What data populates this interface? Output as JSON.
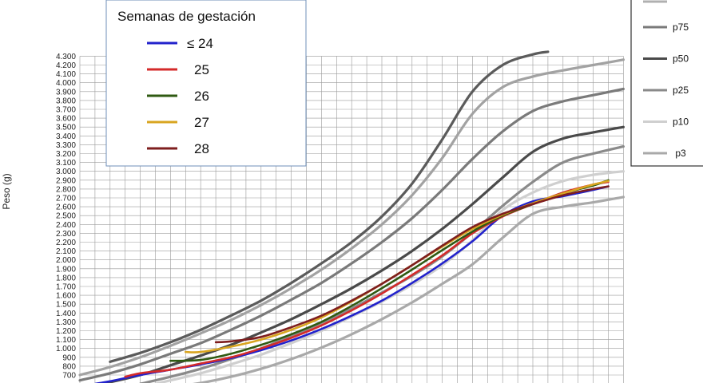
{
  "chart_data": {
    "type": "line",
    "title": "",
    "ylabel": "Peso (g)",
    "xlabel": "",
    "x_index_range": [
      0,
      36
    ],
    "ylim": [
      600,
      4300
    ],
    "ytick_step": 100,
    "grid": true,
    "yticks": [
      "700",
      "800",
      "900",
      "1.000",
      "1.100",
      "1.200",
      "1.300",
      "1.400",
      "1.500",
      "1.600",
      "1.700",
      "1.800",
      "1.900",
      "2.000",
      "2.100",
      "2.200",
      "2.300",
      "2.400",
      "2.500",
      "2.600",
      "2.700",
      "2.800",
      "2.900",
      "3.000",
      "3.100",
      "3.200",
      "3.300",
      "3.400",
      "3.500",
      "3.600",
      "3.700",
      "3.800",
      "3.900",
      "4.000",
      "4.100",
      "4.200",
      "4.300"
    ],
    "legend_left": {
      "title": "Semanas de gestación",
      "placement": "top-left",
      "items": [
        {
          "label": "≤ 24",
          "color": "#2222cc"
        },
        {
          "label": "25",
          "color": "#d42a2a"
        },
        {
          "label": "26",
          "color": "#2f5a12"
        },
        {
          "label": "27",
          "color": "#d9a520"
        },
        {
          "label": "28",
          "color": "#7e1e1e"
        }
      ]
    },
    "legend_right": {
      "placement": "top-right",
      "items": [
        {
          "label": "p75",
          "color": "#7a7a7a"
        },
        {
          "label": "p50",
          "color": "#4a4a4a"
        },
        {
          "label": "p25",
          "color": "#8a8a8a"
        },
        {
          "label": "p10",
          "color": "#cfcfcf"
        },
        {
          "label": "p3",
          "color": "#a9a9a9"
        }
      ]
    },
    "percentile_series": [
      {
        "color": "#5b5b5b",
        "x": [
          2,
          4,
          6,
          8,
          10,
          12,
          14,
          16,
          18,
          20,
          22,
          24,
          26,
          28,
          30,
          31
        ],
        "values": [
          850,
          950,
          1070,
          1210,
          1370,
          1540,
          1740,
          1960,
          2200,
          2490,
          2860,
          3360,
          3900,
          4200,
          4320,
          4350
        ]
      },
      {
        "color": "#a2a2a2",
        "x": [
          0,
          2,
          4,
          6,
          8,
          10,
          12,
          14,
          16,
          18,
          20,
          22,
          24,
          26,
          28,
          30,
          32,
          34,
          36
        ],
        "values": [
          700,
          790,
          900,
          1030,
          1170,
          1320,
          1490,
          1680,
          1890,
          2130,
          2400,
          2730,
          3150,
          3650,
          3950,
          4070,
          4140,
          4200,
          4260
        ]
      },
      {
        "color": "#7a7a7a",
        "x": [
          0,
          2,
          4,
          6,
          8,
          10,
          12,
          14,
          16,
          18,
          20,
          22,
          24,
          26,
          28,
          30,
          32,
          34,
          36
        ],
        "values": [
          640,
          720,
          820,
          940,
          1060,
          1210,
          1370,
          1550,
          1740,
          1960,
          2200,
          2470,
          2790,
          3140,
          3450,
          3680,
          3790,
          3860,
          3930
        ]
      },
      {
        "color": "#4a4a4a",
        "x": [
          0,
          2,
          4,
          6,
          8,
          10,
          12,
          14,
          16,
          18,
          20,
          22,
          24,
          26,
          28,
          30,
          32,
          34,
          36
        ],
        "values": [
          560,
          620,
          700,
          810,
          920,
          1040,
          1180,
          1330,
          1500,
          1680,
          1880,
          2100,
          2350,
          2630,
          2930,
          3220,
          3370,
          3440,
          3500
        ]
      },
      {
        "color": "#8a8a8a",
        "x": [
          4,
          6,
          8,
          10,
          12,
          14,
          16,
          18,
          20,
          22,
          24,
          26,
          28,
          30,
          32,
          34,
          36
        ],
        "values": [
          600,
          680,
          770,
          880,
          1000,
          1140,
          1290,
          1450,
          1630,
          1820,
          2040,
          2310,
          2610,
          2880,
          3100,
          3200,
          3280
        ]
      },
      {
        "color": "#cfcfcf",
        "x": [
          4,
          6,
          8,
          10,
          12,
          14,
          16,
          18,
          20,
          22,
          24,
          26,
          28,
          30,
          32,
          34,
          36
        ],
        "values": [
          560,
          640,
          720,
          820,
          930,
          1060,
          1200,
          1360,
          1530,
          1720,
          1940,
          2220,
          2560,
          2760,
          2890,
          2960,
          3000
        ]
      },
      {
        "color": "#a9a9a9",
        "x": [
          6,
          8,
          10,
          12,
          14,
          16,
          18,
          20,
          22,
          24,
          26,
          28,
          30,
          32,
          34,
          36
        ],
        "values": [
          560,
          610,
          680,
          770,
          880,
          1010,
          1160,
          1330,
          1520,
          1730,
          1950,
          2250,
          2520,
          2600,
          2650,
          2710
        ]
      }
    ],
    "series": [
      {
        "name": "≤ 24",
        "color": "#2222cc",
        "x": [
          1,
          2,
          4,
          6,
          8,
          10,
          12,
          14,
          16,
          18,
          20,
          22,
          24,
          26,
          28,
          30,
          32,
          34,
          35
        ],
        "values": [
          600,
          630,
          700,
          760,
          820,
          890,
          980,
          1090,
          1220,
          1370,
          1540,
          1740,
          1960,
          2210,
          2500,
          2660,
          2720,
          2790,
          2830
        ]
      },
      {
        "name": "25",
        "color": "#d42a2a",
        "x": [
          3,
          4,
          6,
          8,
          10,
          12,
          14,
          16,
          18,
          20,
          22,
          24,
          26,
          28,
          30,
          32,
          34,
          35
        ],
        "values": [
          680,
          720,
          760,
          830,
          900,
          1000,
          1120,
          1260,
          1430,
          1620,
          1830,
          2050,
          2300,
          2490,
          2630,
          2760,
          2850,
          2880
        ]
      },
      {
        "name": "26",
        "color": "#2f5a12",
        "x": [
          6,
          8,
          10,
          12,
          14,
          16,
          18,
          20,
          22,
          24,
          26,
          28,
          30,
          32,
          34,
          35
        ],
        "values": [
          860,
          870,
          940,
          1040,
          1160,
          1300,
          1480,
          1680,
          1890,
          2110,
          2320,
          2500,
          2630,
          2750,
          2840,
          2900
        ]
      },
      {
        "name": "27",
        "color": "#d9a520",
        "x": [
          7,
          8,
          10,
          12,
          14,
          16,
          18,
          20,
          22,
          24,
          26,
          28,
          30,
          32,
          34,
          35
        ],
        "values": [
          960,
          960,
          1020,
          1100,
          1210,
          1350,
          1530,
          1730,
          1940,
          2150,
          2350,
          2510,
          2640,
          2750,
          2850,
          2890
        ]
      },
      {
        "name": "28",
        "color": "#7e1e1e",
        "x": [
          9,
          10,
          12,
          14,
          16,
          18,
          20,
          22,
          24,
          26,
          28,
          30,
          32,
          34,
          35
        ],
        "values": [
          1070,
          1080,
          1130,
          1240,
          1370,
          1540,
          1730,
          1940,
          2160,
          2370,
          2520,
          2630,
          2730,
          2800,
          2830
        ]
      }
    ]
  }
}
